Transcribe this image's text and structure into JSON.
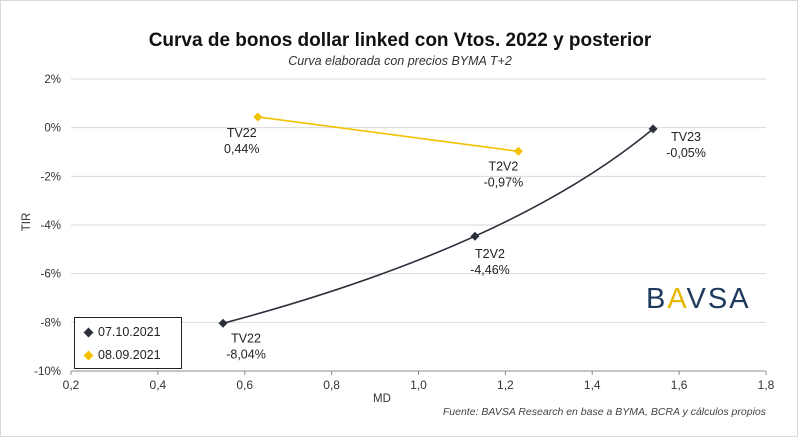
{
  "chart_data": {
    "type": "scatter",
    "title": "Curva de bonos dollar linked con Vtos. 2022 y posterior",
    "subtitle": "Curva elaborada con precios BYMA T+2",
    "xlabel": "MD",
    "ylabel": "TIR",
    "xlim": [
      0.2,
      1.8
    ],
    "ylim": [
      -10,
      2
    ],
    "x_ticks": [
      "0,2",
      "0,4",
      "0,6",
      "0,8",
      "1,0",
      "1,2",
      "1,4",
      "1,6",
      "1,8"
    ],
    "y_ticks": [
      "2%",
      "0%",
      "-2%",
      "-4%",
      "-6%",
      "-8%",
      "-10%"
    ],
    "grid": "horizontal",
    "legend_position": "bottom-left",
    "series": [
      {
        "name": "07.10.2021",
        "color": "#2b2f3a",
        "points": [
          {
            "x": 0.55,
            "y": -8.04,
            "ticker": "TV22",
            "value_label": "-8,04%"
          },
          {
            "x": 1.13,
            "y": -4.46,
            "ticker": "T2V2",
            "value_label": "-4,46%"
          },
          {
            "x": 1.54,
            "y": -0.05,
            "ticker": "TV23",
            "value_label": "-0,05%"
          }
        ]
      },
      {
        "name": "08.09.2021",
        "color": "#f2c200",
        "points": [
          {
            "x": 0.63,
            "y": 0.44,
            "ticker": "TV22",
            "value_label": "0,44%"
          },
          {
            "x": 1.23,
            "y": -0.97,
            "ticker": "T2V2",
            "value_label": "-0,97%"
          }
        ]
      }
    ],
    "source": "Fuente: BAVSA Research en base a BYMA, BCRA y cálculos propios"
  },
  "logo": {
    "left": "B",
    "accent": "A",
    "mid": "V",
    "slash": "S",
    "right": "A"
  }
}
